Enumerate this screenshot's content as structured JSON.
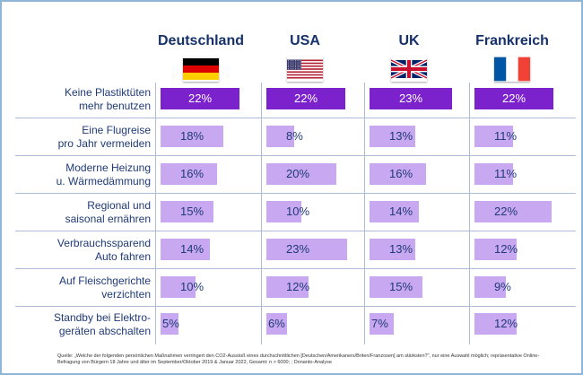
{
  "chart_data": {
    "type": "bar",
    "categories": [
      "Keine Plastiktüten mehr benutzen",
      "Eine Flugreise pro Jahr vermeiden",
      "Moderne Heizung u. Wärmedämmung",
      "Regional und saisonal ernähren",
      "Verbrauchssparend Auto fahren",
      "Auf Fleischgerichte verzichten",
      "Standby bei Elektrogeräten abschalten"
    ],
    "category_lines": [
      [
        "Keine Plastiktüten",
        "mehr benutzen"
      ],
      [
        "Eine Flugreise",
        "pro Jahr vermeiden"
      ],
      [
        "Moderne Heizung",
        "u. Wärmedämmung"
      ],
      [
        "Regional und",
        "saisonal ernähren"
      ],
      [
        "Verbrauchssparend",
        "Auto fahren"
      ],
      [
        "Auf Fleischgerichte",
        "verzichten"
      ],
      [
        "Standby bei Elektro-",
        "geräten abschalten"
      ]
    ],
    "series": [
      {
        "name": "Deutschland",
        "flag": "germany-flag",
        "values": [
          22,
          18,
          16,
          15,
          14,
          10,
          5
        ]
      },
      {
        "name": "USA",
        "flag": "usa-flag",
        "values": [
          22,
          8,
          20,
          10,
          23,
          12,
          6
        ]
      },
      {
        "name": "UK",
        "flag": "uk-flag",
        "values": [
          23,
          13,
          16,
          14,
          13,
          15,
          7
        ]
      },
      {
        "name": "Frankreich",
        "flag": "france-flag",
        "values": [
          22,
          11,
          11,
          22,
          12,
          9,
          12
        ]
      }
    ],
    "value_suffix": "%",
    "xlim": [
      0,
      23
    ],
    "colors": {
      "highlight": "#7b22cc",
      "bar": "#c8a8f0",
      "text": "#1f3a78"
    }
  },
  "footnote": "Quelle: „Welche der folgenden persönlichen Maßnahmen verringert den CO2-Ausstoß eines durchschnittlichen [Deutschen/Amerikaners/Briten/Franzosen] am stärksten?\", nur eine Auswahl möglich; repräsentative Online-Befragung von Bürgern 18 Jahre und älter im September/Oktober 2019 & Januar 2022, Gesamt: n > 6000; ; Donanto-Analyse"
}
